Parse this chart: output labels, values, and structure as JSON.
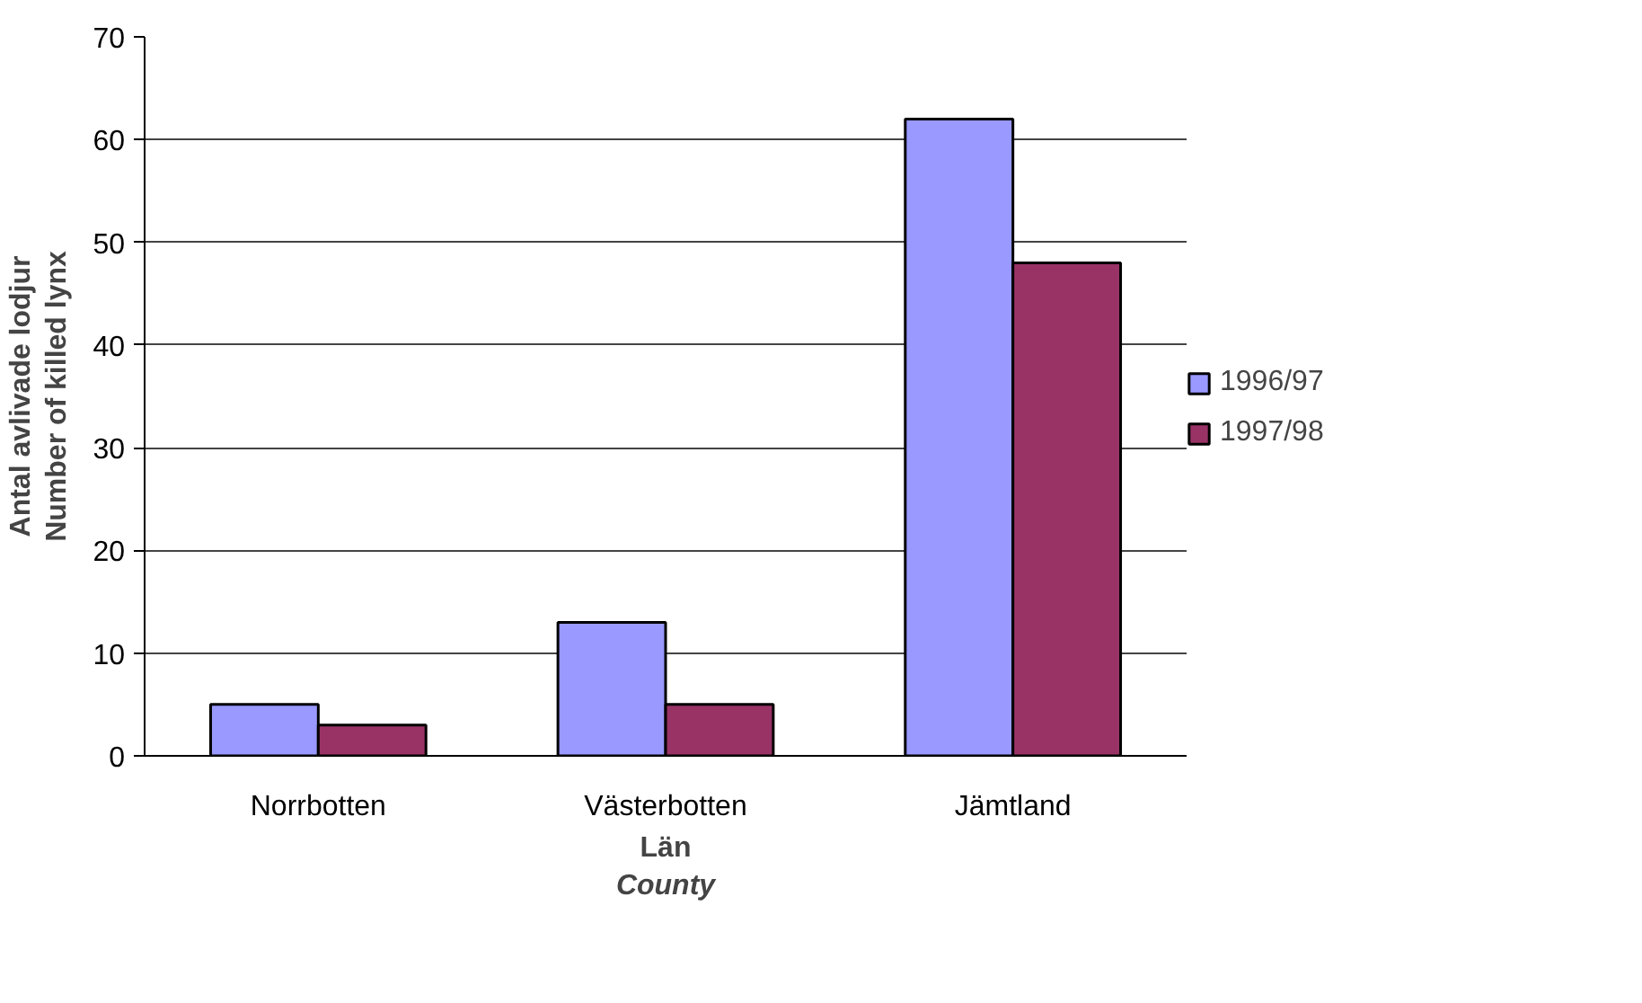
{
  "chart_data": {
    "type": "bar",
    "categories": [
      "Norrbotten",
      "Västerbotten",
      "Jämtland"
    ],
    "series": [
      {
        "name": "1996/97",
        "color": "#9999ff",
        "values": [
          5,
          13,
          62
        ]
      },
      {
        "name": "1997/98",
        "color": "#993366",
        "values": [
          3,
          5,
          48
        ]
      }
    ],
    "xlabel": "Län\nCounty",
    "ylabel": "Antal avlivade lodjur\nNumber of killed lynx",
    "ylim": [
      0,
      70
    ],
    "yticks": [
      0,
      10,
      20,
      30,
      40,
      50,
      60,
      70
    ],
    "grid": "y",
    "legend": "right"
  }
}
